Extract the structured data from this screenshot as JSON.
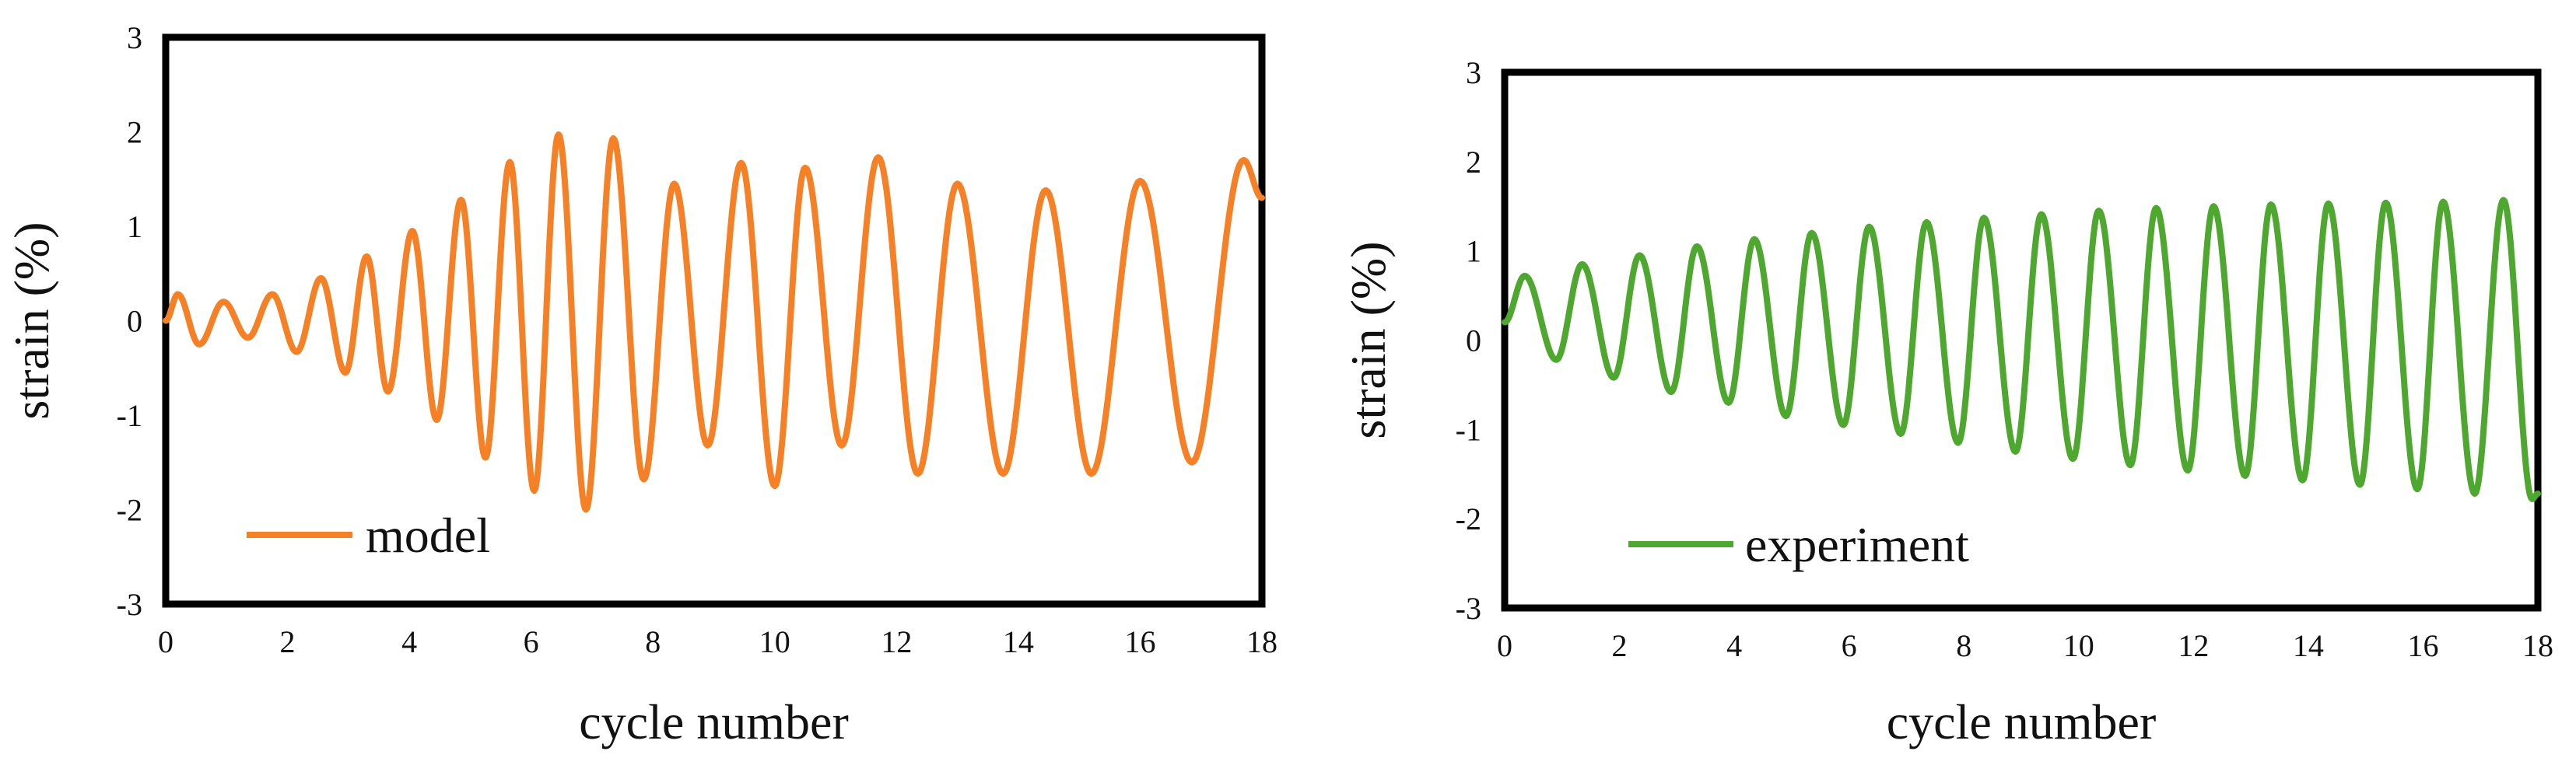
{
  "chart_data": [
    {
      "type": "line",
      "xlabel": "cycle number",
      "ylabel": "strain (%)",
      "xlim": [
        0,
        18
      ],
      "ylim": [
        -3,
        3
      ],
      "x_ticks": [
        "0",
        "2",
        "4",
        "6",
        "8",
        "10",
        "12",
        "14",
        "16",
        "18"
      ],
      "y_ticks": [
        "3",
        "2",
        "1",
        "0",
        "-1",
        "-2",
        "-3"
      ],
      "legend": "bottom-left",
      "grid": false,
      "series": [
        {
          "name": "model",
          "color": "#F58025",
          "extrema": [
            {
              "x": 0.0,
              "y": 0.0
            },
            {
              "x": 0.2,
              "y": 0.28
            },
            {
              "x": 0.55,
              "y": -0.25
            },
            {
              "x": 0.95,
              "y": 0.2
            },
            {
              "x": 1.35,
              "y": -0.18
            },
            {
              "x": 1.75,
              "y": 0.28
            },
            {
              "x": 2.15,
              "y": -0.33
            },
            {
              "x": 2.55,
              "y": 0.45
            },
            {
              "x": 2.95,
              "y": -0.55
            },
            {
              "x": 3.3,
              "y": 0.68
            },
            {
              "x": 3.65,
              "y": -0.75
            },
            {
              "x": 4.05,
              "y": 0.95
            },
            {
              "x": 4.45,
              "y": -1.05
            },
            {
              "x": 4.85,
              "y": 1.28
            },
            {
              "x": 5.25,
              "y": -1.45
            },
            {
              "x": 5.65,
              "y": 1.68
            },
            {
              "x": 6.05,
              "y": -1.8
            },
            {
              "x": 6.45,
              "y": 1.97
            },
            {
              "x": 6.9,
              "y": -2.0
            },
            {
              "x": 7.35,
              "y": 1.93
            },
            {
              "x": 7.85,
              "y": -1.68
            },
            {
              "x": 8.35,
              "y": 1.45
            },
            {
              "x": 8.9,
              "y": -1.32
            },
            {
              "x": 9.45,
              "y": 1.67
            },
            {
              "x": 10.0,
              "y": -1.75
            },
            {
              "x": 10.5,
              "y": 1.62
            },
            {
              "x": 11.1,
              "y": -1.32
            },
            {
              "x": 11.7,
              "y": 1.73
            },
            {
              "x": 12.35,
              "y": -1.62
            },
            {
              "x": 13.0,
              "y": 1.45
            },
            {
              "x": 13.75,
              "y": -1.62
            },
            {
              "x": 14.45,
              "y": 1.38
            },
            {
              "x": 15.2,
              "y": -1.62
            },
            {
              "x": 16.0,
              "y": 1.48
            },
            {
              "x": 16.85,
              "y": -1.5
            },
            {
              "x": 17.7,
              "y": 1.7
            },
            {
              "x": 18.0,
              "y": 1.3
            }
          ]
        }
      ]
    },
    {
      "type": "line",
      "xlabel": "cycle number",
      "ylabel": "strain (%)",
      "xlim": [
        0,
        18
      ],
      "ylim": [
        -3,
        3
      ],
      "x_ticks": [
        "0",
        "2",
        "4",
        "6",
        "8",
        "10",
        "12",
        "14",
        "16",
        "18"
      ],
      "y_ticks": [
        "3",
        "2",
        "1",
        "0",
        "-1",
        "-2",
        "-3"
      ],
      "legend": "bottom-left",
      "grid": false,
      "series": [
        {
          "name": "experiment",
          "color": "#4EA72E",
          "extrema": [
            {
              "x": 0.0,
              "y": 0.2
            },
            {
              "x": 0.35,
              "y": 0.72
            },
            {
              "x": 0.9,
              "y": -0.22
            },
            {
              "x": 1.35,
              "y": 0.85
            },
            {
              "x": 1.9,
              "y": -0.42
            },
            {
              "x": 2.35,
              "y": 0.95
            },
            {
              "x": 2.9,
              "y": -0.58
            },
            {
              "x": 3.35,
              "y": 1.05
            },
            {
              "x": 3.9,
              "y": -0.7
            },
            {
              "x": 4.35,
              "y": 1.13
            },
            {
              "x": 4.9,
              "y": -0.85
            },
            {
              "x": 5.35,
              "y": 1.2
            },
            {
              "x": 5.9,
              "y": -0.95
            },
            {
              "x": 6.35,
              "y": 1.27
            },
            {
              "x": 6.9,
              "y": -1.05
            },
            {
              "x": 7.35,
              "y": 1.32
            },
            {
              "x": 7.9,
              "y": -1.15
            },
            {
              "x": 8.35,
              "y": 1.37
            },
            {
              "x": 8.9,
              "y": -1.25
            },
            {
              "x": 9.35,
              "y": 1.41
            },
            {
              "x": 9.9,
              "y": -1.33
            },
            {
              "x": 10.35,
              "y": 1.45
            },
            {
              "x": 10.9,
              "y": -1.4
            },
            {
              "x": 11.35,
              "y": 1.48
            },
            {
              "x": 11.9,
              "y": -1.46
            },
            {
              "x": 12.35,
              "y": 1.5
            },
            {
              "x": 12.9,
              "y": -1.52
            },
            {
              "x": 13.35,
              "y": 1.52
            },
            {
              "x": 13.9,
              "y": -1.57
            },
            {
              "x": 14.35,
              "y": 1.53
            },
            {
              "x": 14.9,
              "y": -1.62
            },
            {
              "x": 15.35,
              "y": 1.54
            },
            {
              "x": 15.9,
              "y": -1.67
            },
            {
              "x": 16.35,
              "y": 1.55
            },
            {
              "x": 16.9,
              "y": -1.72
            },
            {
              "x": 17.4,
              "y": 1.57
            },
            {
              "x": 17.9,
              "y": -1.78
            },
            {
              "x": 18.0,
              "y": -1.72
            }
          ]
        }
      ]
    }
  ]
}
